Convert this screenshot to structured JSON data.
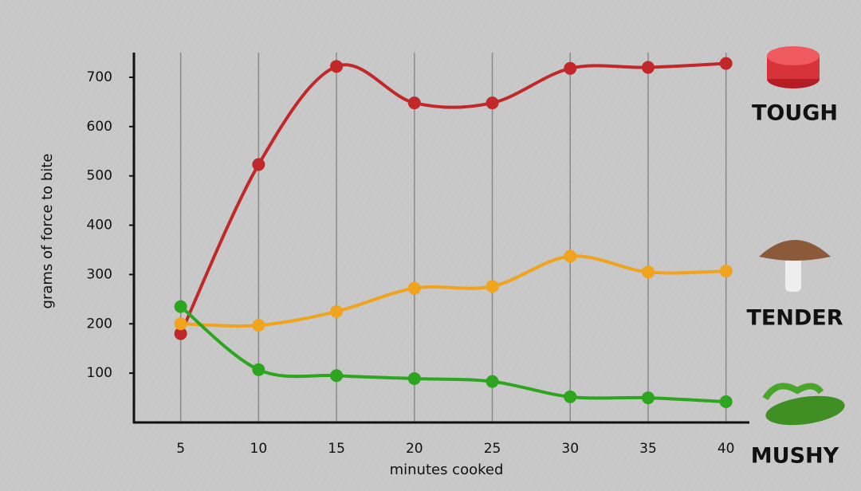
{
  "chart_data": {
    "type": "line",
    "xlabel": "minutes cooked",
    "ylabel": "grams of force to bite",
    "x": [
      5,
      10,
      15,
      20,
      25,
      30,
      35,
      40
    ],
    "series": [
      {
        "name": "TOUGH",
        "color": "#c0282a",
        "values": [
          180,
          523,
          722,
          648,
          648,
          718,
          720,
          728
        ]
      },
      {
        "name": "TENDER",
        "color": "#f0a31c",
        "values": [
          200,
          197,
          225,
          272,
          276,
          337,
          305,
          307
        ]
      },
      {
        "name": "MUSHY",
        "color": "#2ea51f",
        "values": [
          235,
          107,
          95,
          89,
          83,
          52,
          50,
          42
        ]
      }
    ],
    "xlim": [
      2,
      41.5
    ],
    "xticks": [
      5,
      10,
      15,
      20,
      25,
      30,
      35,
      40
    ],
    "ylim": [
      0,
      750
    ],
    "yticks": [
      100,
      200,
      300,
      400,
      500,
      600,
      700
    ],
    "grid": true
  }
}
